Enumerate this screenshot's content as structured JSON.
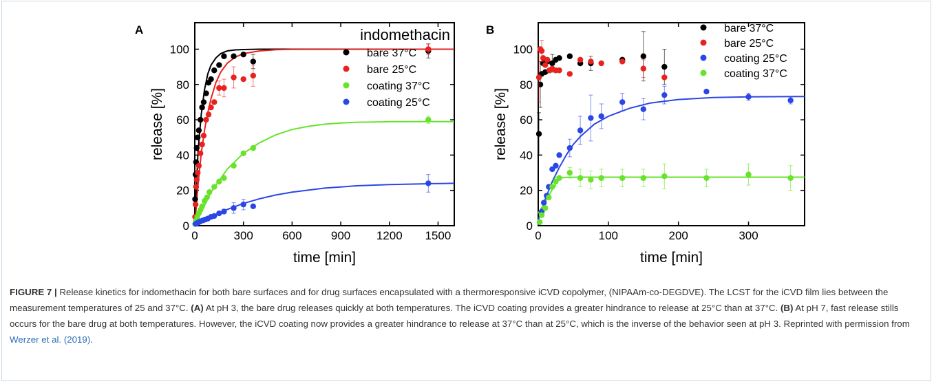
{
  "chart_data": [
    {
      "panel_label": "A",
      "type": "scatter",
      "title": "indomethacin",
      "xlabel": "time [min]",
      "ylabel": "release [%]",
      "xlim": [
        0,
        1600
      ],
      "ylim": [
        0,
        115
      ],
      "xticks": [
        0,
        300,
        600,
        900,
        1200,
        1500
      ],
      "yticks": [
        0,
        20,
        40,
        60,
        80,
        100
      ],
      "legend_position": "top-right",
      "series": [
        {
          "name": "bare 37°C",
          "color": "#000000",
          "points": [
            [
              2,
              15
            ],
            [
              5,
              29
            ],
            [
              8,
              36
            ],
            [
              12,
              44
            ],
            [
              18,
              50
            ],
            [
              25,
              54
            ],
            [
              35,
              60
            ],
            [
              45,
              67
            ],
            [
              55,
              70
            ],
            [
              70,
              75
            ],
            [
              85,
              81
            ],
            [
              100,
              83
            ],
            [
              120,
              88
            ],
            [
              150,
              91
            ],
            [
              180,
              96
            ],
            [
              240,
              96
            ],
            [
              300,
              97
            ],
            [
              360,
              93
            ],
            [
              1440,
              99
            ]
          ],
          "errors": [
            0,
            0,
            0,
            0,
            0,
            0,
            0,
            0,
            0,
            0,
            0,
            0,
            0,
            0,
            0,
            0,
            0,
            4,
            4
          ],
          "fit": [
            [
              0,
              0
            ],
            [
              20,
              42
            ],
            [
              40,
              63
            ],
            [
              60,
              77
            ],
            [
              80,
              86
            ],
            [
              100,
              91
            ],
            [
              130,
              95
            ],
            [
              160,
              97.5
            ],
            [
              200,
              99
            ],
            [
              250,
              99.6
            ],
            [
              300,
              99.8
            ],
            [
              400,
              100
            ],
            [
              1600,
              100
            ]
          ]
        },
        {
          "name": "bare 25°C",
          "color": "#e8221f",
          "points": [
            [
              2,
              5
            ],
            [
              5,
              12
            ],
            [
              8,
              22
            ],
            [
              12,
              26
            ],
            [
              18,
              30
            ],
            [
              25,
              34
            ],
            [
              35,
              41
            ],
            [
              45,
              46
            ],
            [
              55,
              51
            ],
            [
              70,
              60
            ],
            [
              85,
              63
            ],
            [
              100,
              67
            ],
            [
              120,
              70
            ],
            [
              150,
              78
            ],
            [
              180,
              78
            ],
            [
              240,
              84
            ],
            [
              300,
              83
            ],
            [
              360,
              85
            ],
            [
              1440,
              100
            ]
          ],
          "errors": [
            0,
            0,
            0,
            0,
            0,
            0,
            0,
            0,
            0,
            0,
            0,
            0,
            0,
            4,
            5,
            6,
            0,
            6,
            3
          ],
          "fit": [
            [
              0,
              0
            ],
            [
              20,
              23
            ],
            [
              40,
              41
            ],
            [
              60,
              54
            ],
            [
              80,
              64
            ],
            [
              100,
              72
            ],
            [
              130,
              81
            ],
            [
              160,
              87
            ],
            [
              200,
              92
            ],
            [
              250,
              95.5
            ],
            [
              300,
              97.5
            ],
            [
              400,
              99
            ],
            [
              500,
              99.7
            ],
            [
              600,
              99.9
            ],
            [
              1600,
              100
            ]
          ]
        },
        {
          "name": "coating 37°C",
          "color": "#66e32a",
          "points": [
            [
              2,
              1
            ],
            [
              8,
              3
            ],
            [
              15,
              5
            ],
            [
              25,
              7
            ],
            [
              35,
              9
            ],
            [
              45,
              11
            ],
            [
              60,
              14
            ],
            [
              75,
              16
            ],
            [
              90,
              19
            ],
            [
              120,
              22
            ],
            [
              150,
              25
            ],
            [
              180,
              27
            ],
            [
              240,
              34
            ],
            [
              300,
              41
            ],
            [
              360,
              44
            ],
            [
              1440,
              60
            ]
          ],
          "errors": [
            0,
            0,
            0,
            0,
            0,
            0,
            0,
            0,
            0,
            0,
            0,
            0,
            0,
            0,
            0,
            2
          ],
          "fit": [
            [
              0,
              0
            ],
            [
              100,
              19
            ],
            [
              200,
              32
            ],
            [
              300,
              41
            ],
            [
              400,
              47
            ],
            [
              500,
              51.5
            ],
            [
              600,
              54.5
            ],
            [
              700,
              56.3
            ],
            [
              800,
              57.5
            ],
            [
              900,
              58.2
            ],
            [
              1000,
              58.6
            ],
            [
              1200,
              58.9
            ],
            [
              1400,
              59
            ],
            [
              1600,
              59
            ]
          ]
        },
        {
          "name": "coating 25°C",
          "color": "#2b46e6",
          "points": [
            [
              5,
              1
            ],
            [
              15,
              1.5
            ],
            [
              25,
              2
            ],
            [
              35,
              2.5
            ],
            [
              50,
              3
            ],
            [
              65,
              3.5
            ],
            [
              80,
              4
            ],
            [
              100,
              5
            ],
            [
              120,
              5.5
            ],
            [
              150,
              7
            ],
            [
              180,
              8
            ],
            [
              240,
              10
            ],
            [
              300,
              12
            ],
            [
              360,
              11
            ],
            [
              1440,
              24
            ]
          ],
          "errors": [
            0,
            0,
            0,
            0,
            0,
            0,
            0,
            0,
            0,
            0,
            0,
            3,
            3,
            0,
            5
          ],
          "fit": [
            [
              0,
              0
            ],
            [
              100,
              5
            ],
            [
              200,
              9.2
            ],
            [
              300,
              12.6
            ],
            [
              400,
              15.3
            ],
            [
              500,
              17.4
            ],
            [
              600,
              19
            ],
            [
              800,
              21.3
            ],
            [
              1000,
              22.6
            ],
            [
              1200,
              23.3
            ],
            [
              1400,
              23.7
            ],
            [
              1600,
              24
            ]
          ]
        }
      ]
    },
    {
      "panel_label": "B",
      "type": "scatter",
      "title": "",
      "xlabel": "time [min]",
      "ylabel": "release [%]",
      "xlim": [
        0,
        380
      ],
      "ylim": [
        0,
        115
      ],
      "xticks": [
        0,
        100,
        200,
        300
      ],
      "yticks": [
        0,
        20,
        40,
        60,
        80,
        100
      ],
      "legend_position": "top-right",
      "series": [
        {
          "name": "bare 37°C",
          "color": "#000000",
          "points": [
            [
              1,
              52
            ],
            [
              3,
              80
            ],
            [
              5,
              86
            ],
            [
              7,
              92
            ],
            [
              10,
              87
            ],
            [
              13,
              93
            ],
            [
              16,
              88
            ],
            [
              20,
              92
            ],
            [
              25,
              94
            ],
            [
              30,
              95
            ],
            [
              45,
              96
            ],
            [
              60,
              92
            ],
            [
              75,
              92
            ],
            [
              120,
              94
            ],
            [
              150,
              96
            ],
            [
              180,
              90
            ]
          ],
          "errors": [
            12,
            13,
            0,
            0,
            0,
            0,
            0,
            5,
            0,
            0,
            0,
            0,
            4,
            0,
            14,
            10
          ]
        },
        {
          "name": "bare 25°C",
          "color": "#e8221f",
          "points": [
            [
              1,
              84
            ],
            [
              3,
              100
            ],
            [
              5,
              99
            ],
            [
              7,
              95
            ],
            [
              10,
              91
            ],
            [
              13,
              94
            ],
            [
              16,
              88
            ],
            [
              20,
              89
            ],
            [
              25,
              88
            ],
            [
              30,
              88
            ],
            [
              45,
              86
            ],
            [
              60,
              94
            ],
            [
              75,
              93
            ],
            [
              90,
              92
            ],
            [
              120,
              93
            ],
            [
              150,
              89
            ],
            [
              180,
              84
            ]
          ],
          "errors": [
            14,
            0,
            6,
            0,
            0,
            0,
            0,
            0,
            0,
            0,
            0,
            0,
            0,
            0,
            0,
            5,
            0
          ]
        },
        {
          "name": "coating 25°C",
          "color": "#2b46e6",
          "points": [
            [
              2,
              2
            ],
            [
              5,
              8
            ],
            [
              8,
              13
            ],
            [
              12,
              17
            ],
            [
              15,
              22
            ],
            [
              20,
              32
            ],
            [
              25,
              34
            ],
            [
              30,
              40
            ],
            [
              45,
              44
            ],
            [
              60,
              54
            ],
            [
              75,
              61
            ],
            [
              90,
              62
            ],
            [
              120,
              70
            ],
            [
              150,
              66
            ],
            [
              180,
              74
            ],
            [
              240,
              76
            ],
            [
              300,
              73
            ],
            [
              360,
              71
            ]
          ],
          "errors": [
            0,
            0,
            0,
            0,
            0,
            0,
            0,
            0,
            5,
            8,
            13,
            7,
            5,
            6,
            5,
            0,
            2,
            2
          ],
          "fit": [
            [
              0,
              3
            ],
            [
              10,
              15
            ],
            [
              20,
              25
            ],
            [
              30,
              33
            ],
            [
              40,
              40
            ],
            [
              50,
              46
            ],
            [
              60,
              50.5
            ],
            [
              80,
              57.5
            ],
            [
              100,
              62
            ],
            [
              130,
              66.5
            ],
            [
              160,
              69.5
            ],
            [
              200,
              71.5
            ],
            [
              250,
              72.6
            ],
            [
              300,
              73
            ],
            [
              380,
              73.2
            ]
          ]
        },
        {
          "name": "coating 37°C",
          "color": "#66e32a",
          "points": [
            [
              2,
              2
            ],
            [
              5,
              6
            ],
            [
              10,
              10
            ],
            [
              15,
              16
            ],
            [
              20,
              22
            ],
            [
              25,
              25
            ],
            [
              30,
              27
            ],
            [
              45,
              30
            ],
            [
              60,
              27
            ],
            [
              75,
              26
            ],
            [
              90,
              27
            ],
            [
              120,
              27
            ],
            [
              150,
              27
            ],
            [
              180,
              28
            ],
            [
              240,
              27
            ],
            [
              300,
              29
            ],
            [
              360,
              27
            ]
          ],
          "errors": [
            0,
            0,
            0,
            0,
            0,
            3,
            0,
            3,
            5,
            5,
            5,
            5,
            5,
            7,
            5,
            6,
            7
          ],
          "fit": [
            [
              0,
              7
            ],
            [
              10,
              13.5
            ],
            [
              20,
              20.5
            ],
            [
              30,
              27
            ],
            [
              40,
              27.4
            ],
            [
              60,
              27.5
            ],
            [
              380,
              27.5
            ]
          ]
        }
      ]
    }
  ],
  "caption": {
    "label": "FIGURE 7 |",
    "text_1": " Release kinetics for indomethacin for both bare surfaces and for drug surfaces encapsulated with a thermoresponsive iCVD copolymer, (NIPAAm-co-DEGDVE). The LCST for the iCVD film lies between the measurement temperatures of 25 and 37°C. ",
    "ref_a": "(A)",
    "text_2": " At pH 3, the bare drug releases quickly at both temperatures. The iCVD coating provides a greater hindrance to release at 25°C than at 37°C. ",
    "ref_b": "(B)",
    "text_3": " At pH 7, fast release stills occurs for the bare drug at both temperatures. However, the iCVD coating now provides a greater hindrance to release at 37°C than at 25°C, which is the inverse of the behavior seen at pH 3. Reprinted with permission from ",
    "citation": "Werzer et al. (2019)",
    "text_4": "."
  }
}
